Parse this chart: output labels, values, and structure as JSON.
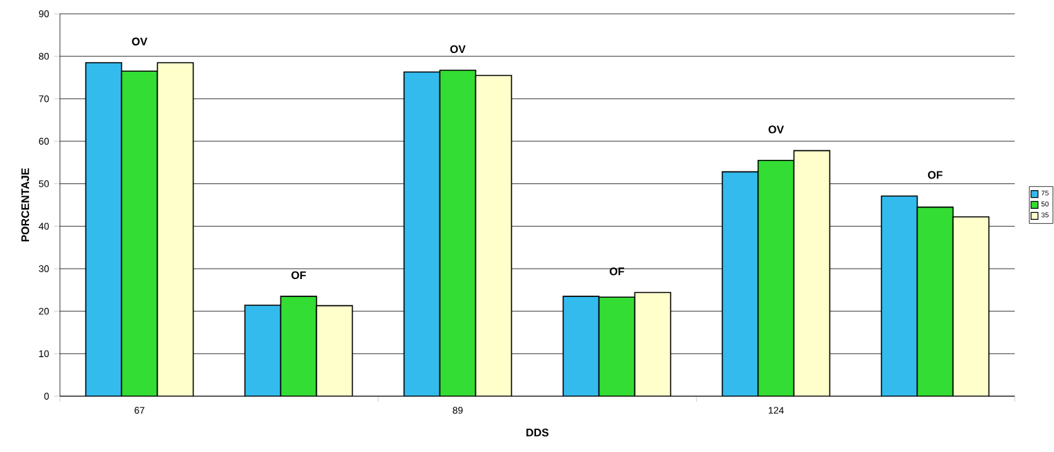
{
  "chart_data": {
    "type": "bar",
    "xlabel": "DDS",
    "ylabel": "PORCENTAJE",
    "categories": [
      "67",
      null,
      "89",
      null,
      "124",
      null
    ],
    "series": [
      {
        "name": "75",
        "color": "#33bbee",
        "values": [
          78.5,
          21.4,
          76.3,
          23.5,
          52.8,
          47.1
        ]
      },
      {
        "name": "50",
        "color": "#33dd33",
        "values": [
          76.5,
          23.5,
          76.7,
          23.3,
          55.5,
          44.5
        ]
      },
      {
        "name": "35",
        "color": "#ffffcc",
        "values": [
          78.5,
          21.3,
          75.5,
          24.4,
          57.8,
          42.2
        ]
      }
    ],
    "annotations": [
      "OV",
      "OF",
      "OV",
      "OF",
      "OV",
      "OF"
    ],
    "ylim": [
      0,
      90
    ],
    "yticks": [
      0,
      10,
      20,
      30,
      40,
      50,
      60,
      70,
      80,
      90
    ],
    "grid": "y",
    "legend": "right"
  }
}
